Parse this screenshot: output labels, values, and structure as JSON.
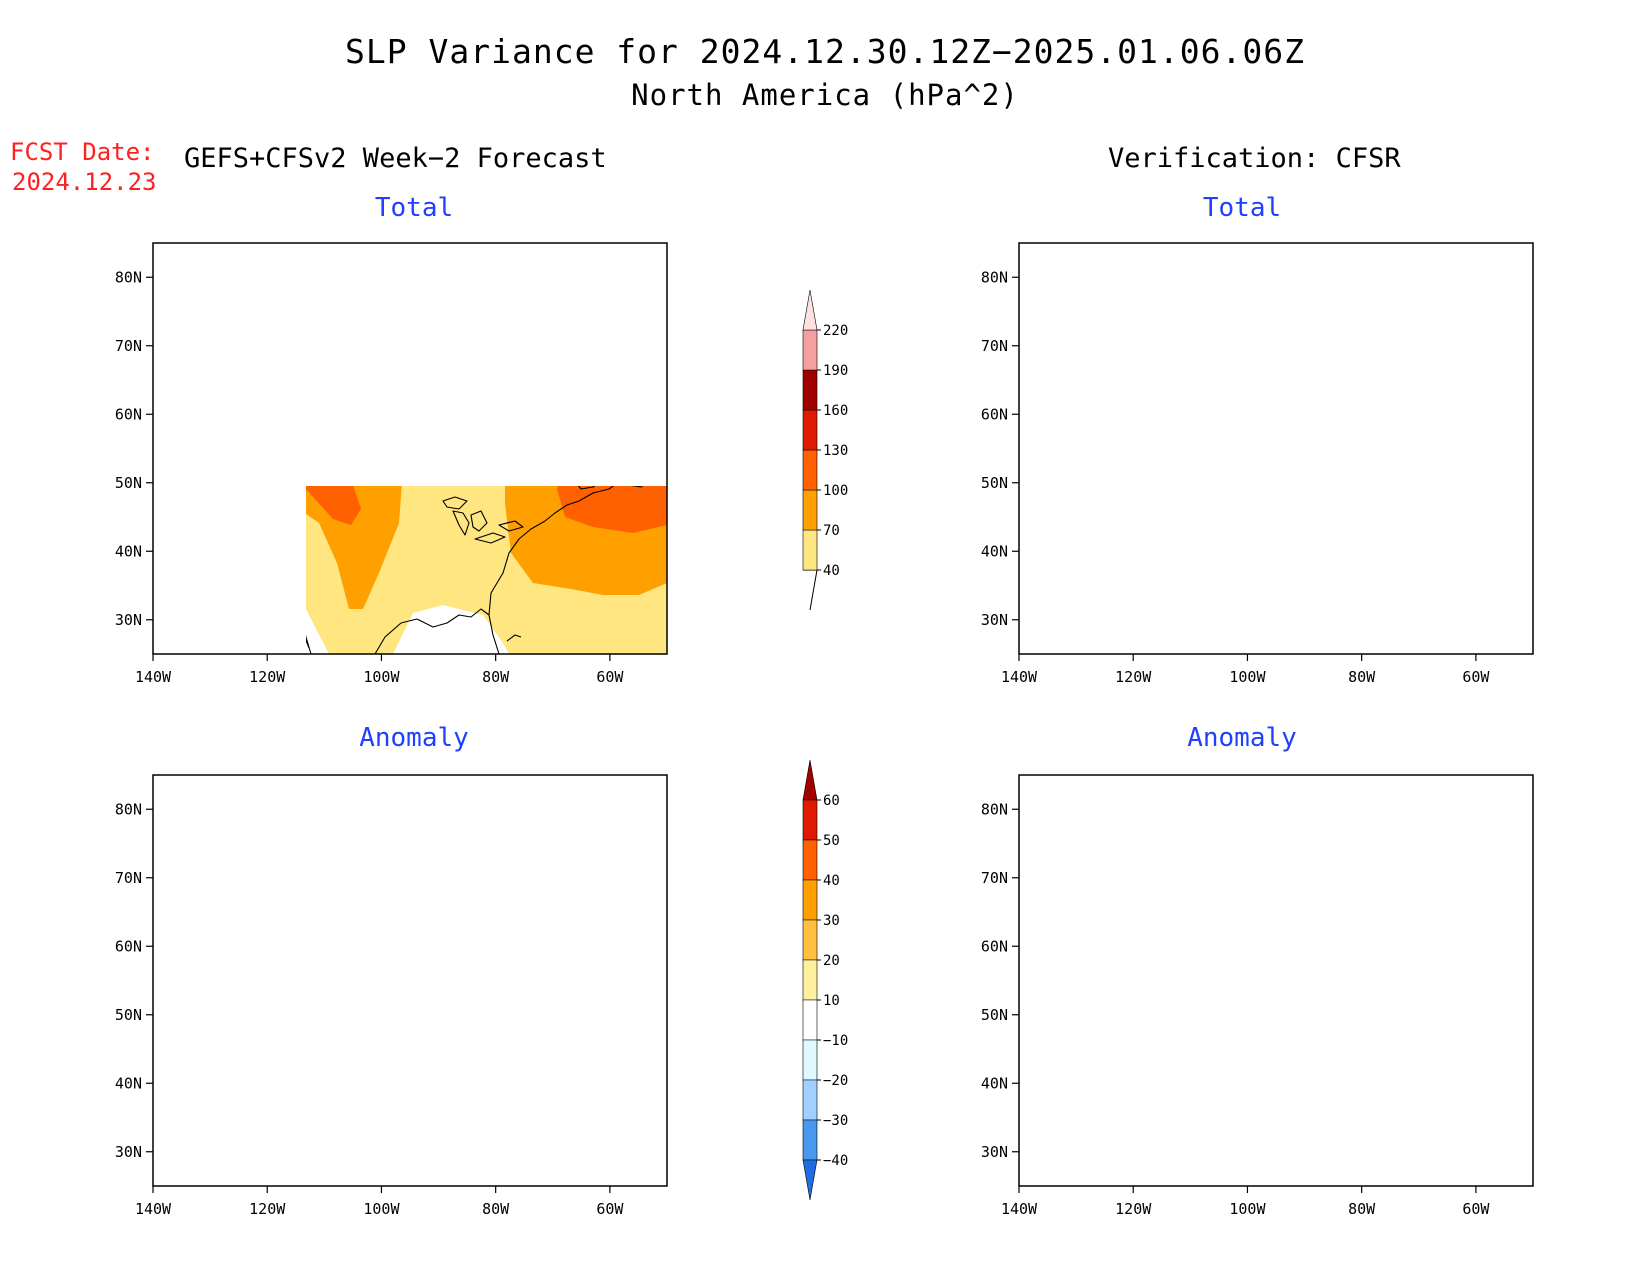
{
  "title_line1": "SLP Variance for 2024.12.30.12Z−2025.01.06.06Z",
  "title_line2": "North America (hPa^2)",
  "fcst": {
    "label": "FCST Date:",
    "date": "2024.12.23"
  },
  "left_heading": "GEFS+CFSv2 Week−2 Forecast",
  "right_heading": "Verification: CFSR",
  "panel_titles": {
    "top": "Total",
    "bottom": "Anomaly"
  },
  "map": {
    "lon_ticks": [
      "140W",
      "120W",
      "100W",
      "80W",
      "60W"
    ],
    "lat_ticks": [
      "80N",
      "70N",
      "60N",
      "50N",
      "40N",
      "30N"
    ],
    "lon_range": [
      -140,
      -50
    ],
    "lat_range": [
      25,
      85
    ]
  },
  "colorbar_total": {
    "levels": [
      "40",
      "70",
      "100",
      "130",
      "160",
      "190",
      "220"
    ],
    "colors": [
      "#ffe680",
      "#ffa000",
      "#ff6000",
      "#e01a00",
      "#a00000",
      "#f4a0a0",
      "#fde0e0"
    ]
  },
  "colorbar_anomaly": {
    "levels": [
      "60",
      "50",
      "40",
      "30",
      "20",
      "10",
      "−10",
      "−20",
      "−30",
      "−40"
    ],
    "colors": [
      "#a50000",
      "#e01a00",
      "#ff6000",
      "#ffa000",
      "#ffc040",
      "#fff0a0",
      "#ffffff",
      "#e0f8ff",
      "#a0d0ff",
      "#4898f0",
      "#1e6ee0"
    ]
  },
  "palette": {
    "white": "#ffffff",
    "yellow": "#ffe680",
    "orange": "#ffa000",
    "dorange": "#ff6000",
    "red": "#e01a00",
    "dred": "#a00000",
    "pink": "#f4a0a0",
    "lpink": "#fde0e0",
    "a_lyellow": "#fff0a0",
    "a_lorange": "#ffc040",
    "a_cyan": "#e0f8ff",
    "a_lblue": "#a0d0ff",
    "a_mblue": "#4898f0",
    "a_dblue": "#1e6ee0"
  }
}
